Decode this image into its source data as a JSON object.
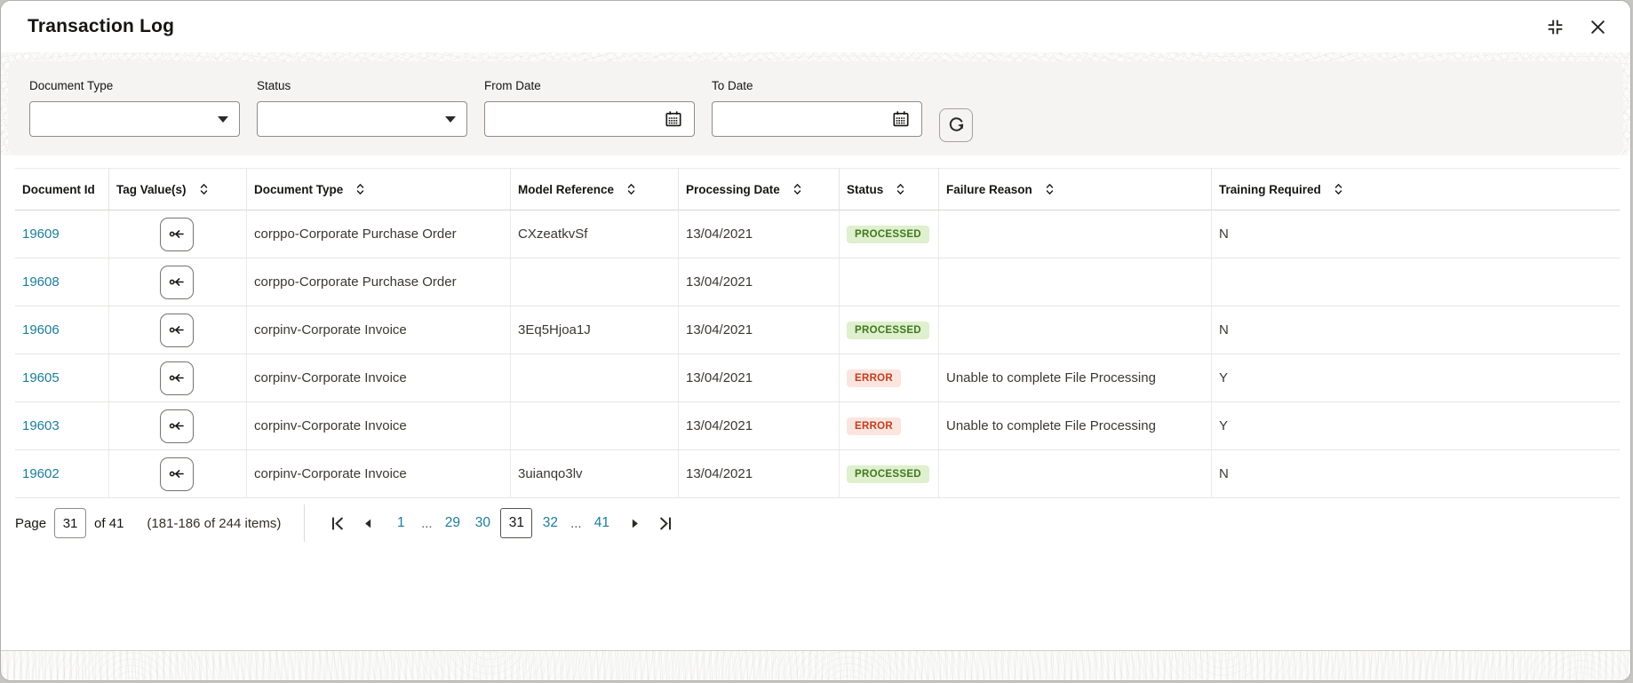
{
  "window": {
    "title": "Transaction Log",
    "icons": {
      "collapse": "collapse-icon",
      "close": "close-icon"
    }
  },
  "filters": {
    "document_type": {
      "label": "Document Type",
      "value": ""
    },
    "status": {
      "label": "Status",
      "value": ""
    },
    "from_date": {
      "label": "From Date",
      "value": ""
    },
    "to_date": {
      "label": "To Date",
      "value": ""
    }
  },
  "table": {
    "columns": [
      {
        "label": "Document Id",
        "sortable": false
      },
      {
        "label": "Tag Value(s)",
        "sortable": true
      },
      {
        "label": "Document Type",
        "sortable": true
      },
      {
        "label": "Model Reference",
        "sortable": true
      },
      {
        "label": "Processing Date",
        "sortable": true
      },
      {
        "label": "Status",
        "sortable": true
      },
      {
        "label": "Failure Reason",
        "sortable": true
      },
      {
        "label": "Training Required",
        "sortable": true
      }
    ],
    "rows": [
      {
        "document_id": "19609",
        "document_type": "corppo-Corporate Purchase Order",
        "model_reference": "CXzeatkvSf",
        "processing_date": "13/04/2021",
        "status": "PROCESSED",
        "failure_reason": "",
        "training_required": "N"
      },
      {
        "document_id": "19608",
        "document_type": "corppo-Corporate Purchase Order",
        "model_reference": "",
        "processing_date": "13/04/2021",
        "status": "",
        "failure_reason": "",
        "training_required": ""
      },
      {
        "document_id": "19606",
        "document_type": "corpinv-Corporate Invoice",
        "model_reference": "3Eq5Hjoa1J",
        "processing_date": "13/04/2021",
        "status": "PROCESSED",
        "failure_reason": "",
        "training_required": "N"
      },
      {
        "document_id": "19605",
        "document_type": "corpinv-Corporate Invoice",
        "model_reference": "",
        "processing_date": "13/04/2021",
        "status": "ERROR",
        "failure_reason": "Unable to complete File Processing",
        "training_required": "Y"
      },
      {
        "document_id": "19603",
        "document_type": "corpinv-Corporate Invoice",
        "model_reference": "",
        "processing_date": "13/04/2021",
        "status": "ERROR",
        "failure_reason": "Unable to complete File Processing",
        "training_required": "Y"
      },
      {
        "document_id": "19602",
        "document_type": "corpinv-Corporate Invoice",
        "model_reference": "3uianqo3lv",
        "processing_date": "13/04/2021",
        "status": "PROCESSED",
        "failure_reason": "",
        "training_required": "N"
      }
    ]
  },
  "pagination": {
    "page_label": "Page",
    "current_page": "31",
    "of_label": "of 41",
    "items_summary": "(181-186 of 244 items)",
    "pages": [
      {
        "label": "1",
        "kind": "link"
      },
      {
        "label": "...",
        "kind": "ellipsis"
      },
      {
        "label": "29",
        "kind": "link"
      },
      {
        "label": "30",
        "kind": "link"
      },
      {
        "label": "31",
        "kind": "current"
      },
      {
        "label": "32",
        "kind": "link"
      },
      {
        "label": "...",
        "kind": "ellipsis"
      },
      {
        "label": "41",
        "kind": "link"
      }
    ]
  },
  "colors": {
    "accent_link": "#1c7c9c",
    "success_bg": "#def0cd",
    "success_text": "#427820",
    "error_bg": "#fbe5df",
    "error_text": "#c13d1d",
    "filter_panel_bg": "#f5f4f2"
  }
}
